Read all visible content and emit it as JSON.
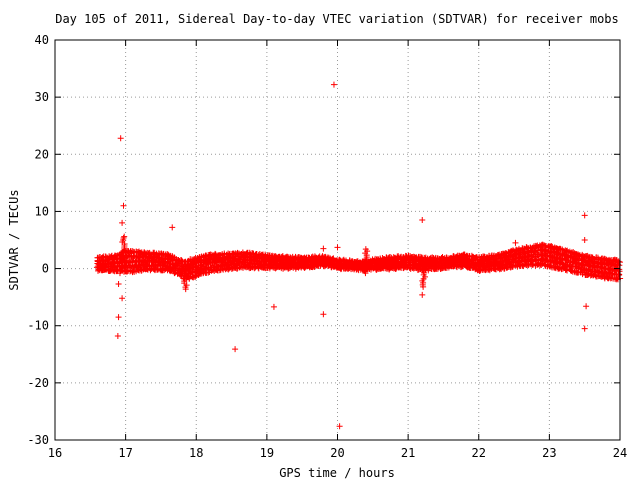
{
  "chart_data": {
    "type": "scatter",
    "title": "Day 105 of 2011, Sidereal Day-to-day VTEC variation (SDTVAR) for receiver mobs",
    "xlabel": "GPS time / hours",
    "ylabel": "SDTVAR / TECUs",
    "xlim": [
      16,
      24
    ],
    "ylim": [
      -30,
      40
    ],
    "x_ticks": [
      16,
      17,
      18,
      19,
      20,
      21,
      22,
      23,
      24
    ],
    "y_ticks": [
      -30,
      -20,
      -10,
      0,
      10,
      20,
      30,
      40
    ],
    "x_tick_labels": [
      "16",
      "17",
      "18",
      "19",
      "20",
      "21",
      "22",
      "23",
      "24"
    ],
    "y_tick_labels": [
      "-30",
      "-20",
      "-10",
      "0",
      "10",
      "20",
      "30",
      "40"
    ],
    "grid": true,
    "marker": "+",
    "marker_color": "#ff0000",
    "band_center": [
      [
        16.6,
        0.8
      ],
      [
        16.8,
        0.9
      ],
      [
        17.0,
        1.2
      ],
      [
        17.3,
        1.3
      ],
      [
        17.6,
        1.1
      ],
      [
        17.85,
        -0.3
      ],
      [
        18.2,
        1.0
      ],
      [
        18.5,
        1.3
      ],
      [
        18.7,
        1.5
      ],
      [
        19.0,
        1.2
      ],
      [
        19.4,
        1.0
      ],
      [
        19.8,
        1.3
      ],
      [
        20.0,
        0.8
      ],
      [
        20.3,
        0.5
      ],
      [
        20.6,
        0.8
      ],
      [
        21.0,
        1.2
      ],
      [
        21.2,
        0.8
      ],
      [
        21.5,
        1.0
      ],
      [
        21.8,
        1.4
      ],
      [
        22.0,
        0.8
      ],
      [
        22.3,
        1.2
      ],
      [
        22.6,
        2.0
      ],
      [
        22.9,
        2.4
      ],
      [
        23.2,
        1.6
      ],
      [
        23.5,
        0.6
      ],
      [
        23.8,
        0.0
      ],
      [
        24.0,
        -0.3
      ]
    ],
    "band_half_width": [
      [
        16.6,
        1.0
      ],
      [
        16.9,
        1.3
      ],
      [
        17.0,
        1.8
      ],
      [
        17.3,
        1.4
      ],
      [
        17.7,
        1.2
      ],
      [
        17.9,
        1.5
      ],
      [
        18.3,
        1.3
      ],
      [
        18.7,
        1.2
      ],
      [
        19.0,
        1.0
      ],
      [
        19.8,
        0.7
      ],
      [
        20.3,
        0.6
      ],
      [
        20.7,
        0.9
      ],
      [
        21.2,
        1.0
      ],
      [
        21.6,
        0.8
      ],
      [
        22.0,
        1.0
      ],
      [
        22.6,
        1.4
      ],
      [
        23.0,
        1.7
      ],
      [
        23.4,
        1.5
      ],
      [
        24.0,
        1.6
      ]
    ],
    "spurs": [
      {
        "x": 16.97,
        "y_from": 5.5,
        "y_to": 1.5
      },
      {
        "x": 17.85,
        "y_from": -3.6,
        "y_to": 0.0
      },
      {
        "x": 21.22,
        "y_from": -3.2,
        "y_to": 0.5
      },
      {
        "x": 20.4,
        "y_from": -0.8,
        "y_to": 3.5
      }
    ],
    "outliers": [
      {
        "x": 16.93,
        "y": 22.8
      },
      {
        "x": 16.97,
        "y": 11.0
      },
      {
        "x": 16.95,
        "y": 8.0
      },
      {
        "x": 16.98,
        "y": 5.6
      },
      {
        "x": 16.92,
        "y": -0.8
      },
      {
        "x": 16.9,
        "y": -2.7
      },
      {
        "x": 16.95,
        "y": -5.2
      },
      {
        "x": 16.9,
        "y": -8.5
      },
      {
        "x": 16.89,
        "y": -11.8
      },
      {
        "x": 17.66,
        "y": 7.2
      },
      {
        "x": 18.55,
        "y": -14.1
      },
      {
        "x": 19.1,
        "y": -6.7
      },
      {
        "x": 19.8,
        "y": 3.5
      },
      {
        "x": 19.8,
        "y": -8.0
      },
      {
        "x": 19.95,
        "y": 32.2
      },
      {
        "x": 20.0,
        "y": 3.7
      },
      {
        "x": 20.03,
        "y": -27.6
      },
      {
        "x": 21.2,
        "y": 8.5
      },
      {
        "x": 21.2,
        "y": -4.6
      },
      {
        "x": 22.52,
        "y": 4.5
      },
      {
        "x": 23.5,
        "y": 9.3
      },
      {
        "x": 23.5,
        "y": 5.0
      },
      {
        "x": 23.52,
        "y": -6.6
      },
      {
        "x": 23.5,
        "y": -10.5
      }
    ]
  }
}
